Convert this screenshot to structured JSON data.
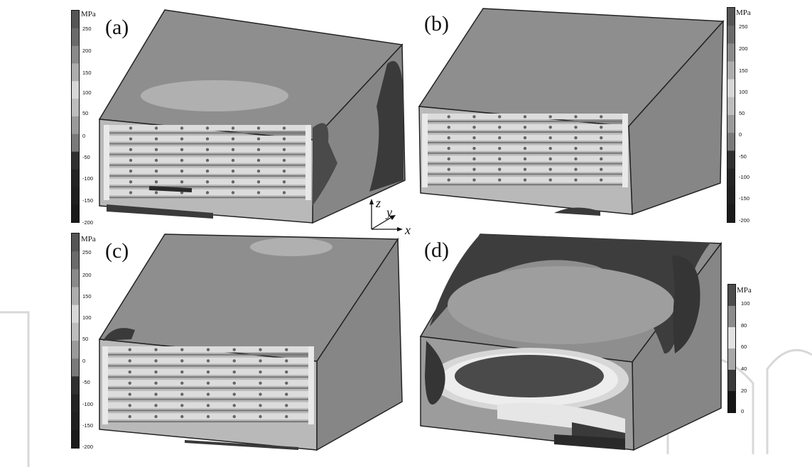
{
  "panels": [
    {
      "label": "(a)"
    },
    {
      "label": "(b)"
    },
    {
      "label": "(c)"
    },
    {
      "label": "(d)"
    }
  ],
  "colorbars": [
    {
      "unit": "MPa",
      "ticks": [
        "250",
        "200",
        "150",
        "100",
        "50",
        "0",
        "-50",
        "-100",
        "-150",
        "-200"
      ]
    },
    {
      "unit": "MPa",
      "ticks": [
        "250",
        "200",
        "150",
        "100",
        "50",
        "0",
        "-50",
        "-100",
        "-150",
        "-200"
      ]
    },
    {
      "unit": "MPa",
      "ticks": [
        "250",
        "200",
        "150",
        "100",
        "50",
        "0",
        "-50",
        "-100",
        "-150",
        "-200"
      ]
    },
    {
      "unit": "MPa",
      "ticks": [
        "100",
        "80",
        "60",
        "40",
        "20",
        "0"
      ]
    }
  ],
  "colorbar_fills": {
    "stress": [
      "#555555",
      "#6b6b6b",
      "#8a8a8a",
      "#adadad",
      "#d7d7d7",
      "#bdbdbd",
      "#9a9a9a",
      "#7a7a7a",
      "#303030",
      "#242424",
      "#202020",
      "#1a1a1a"
    ],
    "d": [
      "#4d4d4d",
      "#8c8c8c",
      "#e2e2e2",
      "#a8a8a8",
      "#3a3a3a",
      "#161616"
    ]
  },
  "axes": {
    "z": "z",
    "y": "y",
    "x": "x"
  },
  "colors": {
    "box_top": "#8e8e8e",
    "box_side": "#858585",
    "box_front": "#b8b8b8",
    "edge": "#222222"
  }
}
